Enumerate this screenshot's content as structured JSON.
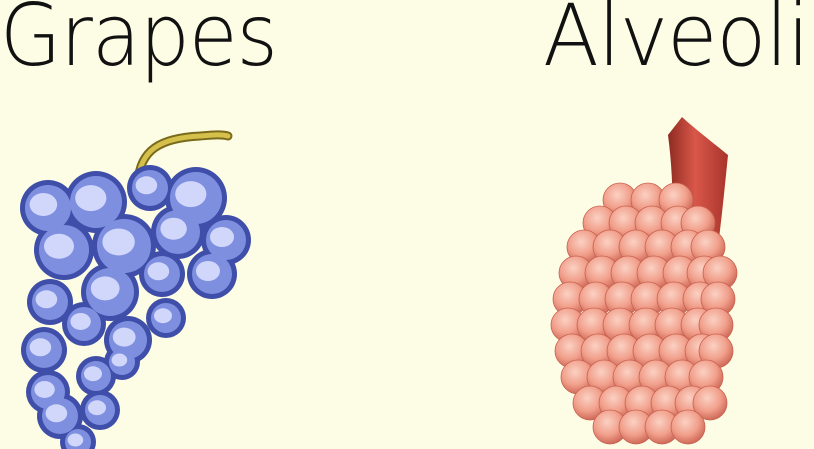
{
  "left_panel": {
    "title": "Grapes",
    "icon": "grape-bunch-icon",
    "colors": {
      "berry_fill": "#7f8fe0",
      "berry_outline": "#3f4ea8",
      "berry_highlight": "#dfe4ff",
      "stem": "#c8b43a"
    }
  },
  "right_panel": {
    "title": "Alveoli",
    "icon": "alveoli-cluster-icon",
    "colors": {
      "sac_fill": "#f1a08c",
      "sac_shadow": "#c9604f",
      "sac_highlight": "#fbd1c3",
      "bronchiole": "#c8453a"
    }
  },
  "background_color": "#fdfde6"
}
